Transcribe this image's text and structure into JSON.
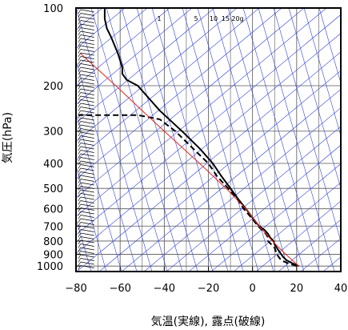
{
  "chart_data": {
    "type": "line",
    "subtype": "skew-T log-P sounding",
    "xlabel": "気温(実線), 露点(破線)",
    "ylabel": "気圧(hPa)",
    "xlim": [
      -80,
      40
    ],
    "ylim": [
      1050,
      100
    ],
    "y_scale": "log",
    "x_ticks": [
      -80,
      -60,
      -40,
      -20,
      0,
      20,
      40
    ],
    "x_tick_labels": [
      "−80",
      "−60",
      "−40",
      "−20",
      "0",
      "20",
      "40"
    ],
    "y_ticks": [
      100,
      200,
      300,
      400,
      500,
      600,
      700,
      800,
      900,
      1000
    ],
    "y_tick_labels": [
      "100",
      "200",
      "300",
      "400",
      "500",
      "600",
      "700",
      "800",
      "900",
      "1000"
    ],
    "grid": true,
    "mixing_ratio_labels": [
      "1",
      "5",
      "10",
      "15",
      "20g"
    ],
    "colors": {
      "temperature": "#000000",
      "dewpoint": "#000000",
      "parcel": "#e8251f",
      "isotherm_dry_adiabat_grid": "#3344dd",
      "background_grid": "#555555",
      "wind_barbs": "#000000"
    },
    "series": [
      {
        "name": "temperature",
        "style": "solid",
        "points": [
          {
            "p": 1000,
            "t": 21
          },
          {
            "p": 975,
            "t": 18
          },
          {
            "p": 950,
            "t": 15.5
          },
          {
            "p": 925,
            "t": 14
          },
          {
            "p": 900,
            "t": 13
          },
          {
            "p": 875,
            "t": 12
          },
          {
            "p": 850,
            "t": 11
          },
          {
            "p": 825,
            "t": 10
          },
          {
            "p": 800,
            "t": 9.5
          },
          {
            "p": 775,
            "t": 8
          },
          {
            "p": 750,
            "t": 7
          },
          {
            "p": 725,
            "t": 5.5
          },
          {
            "p": 700,
            "t": 3
          },
          {
            "p": 675,
            "t": 1.5
          },
          {
            "p": 650,
            "t": 0
          },
          {
            "p": 600,
            "t": -3
          },
          {
            "p": 550,
            "t": -6.5
          },
          {
            "p": 500,
            "t": -10
          },
          {
            "p": 450,
            "t": -14
          },
          {
            "p": 400,
            "t": -18
          },
          {
            "p": 350,
            "t": -24
          },
          {
            "p": 300,
            "t": -32
          },
          {
            "p": 250,
            "t": -42
          },
          {
            "p": 200,
            "t": -52
          },
          {
            "p": 190,
            "t": -57
          },
          {
            "p": 180,
            "t": -59
          },
          {
            "p": 170,
            "t": -59
          },
          {
            "p": 150,
            "t": -61
          },
          {
            "p": 130,
            "t": -64
          },
          {
            "p": 120,
            "t": -66
          },
          {
            "p": 110,
            "t": -67
          },
          {
            "p": 100,
            "t": -67
          }
        ]
      },
      {
        "name": "dewpoint",
        "style": "dashed",
        "points": [
          {
            "p": 1000,
            "t": 20
          },
          {
            "p": 975,
            "t": 16
          },
          {
            "p": 950,
            "t": 13
          },
          {
            "p": 925,
            "t": 12
          },
          {
            "p": 900,
            "t": 11
          },
          {
            "p": 850,
            "t": 10
          },
          {
            "p": 800,
            "t": 7
          },
          {
            "p": 775,
            "t": 7
          },
          {
            "p": 750,
            "t": 6
          },
          {
            "p": 700,
            "t": 2.5
          },
          {
            "p": 650,
            "t": -0.5
          },
          {
            "p": 600,
            "t": -4
          },
          {
            "p": 550,
            "t": -7
          },
          {
            "p": 500,
            "t": -11
          },
          {
            "p": 450,
            "t": -16
          },
          {
            "p": 400,
            "t": -20
          },
          {
            "p": 350,
            "t": -27
          },
          {
            "p": 300,
            "t": -35
          },
          {
            "p": 270,
            "t": -42
          },
          {
            "p": 260,
            "t": -52
          },
          {
            "p": 260,
            "t": -79
          }
        ]
      },
      {
        "name": "parcel",
        "style": "solid",
        "points": [
          {
            "p": 1000,
            "t": 21
          },
          {
            "p": 900,
            "t": 15
          },
          {
            "p": 800,
            "t": 9
          },
          {
            "p": 700,
            "t": 3
          },
          {
            "p": 600,
            "t": -3
          },
          {
            "p": 500,
            "t": -12
          },
          {
            "p": 400,
            "t": -24
          },
          {
            "p": 300,
            "t": -40
          },
          {
            "p": 250,
            "t": -50
          },
          {
            "p": 200,
            "t": -62
          },
          {
            "p": 150,
            "t": -78
          }
        ]
      }
    ]
  }
}
